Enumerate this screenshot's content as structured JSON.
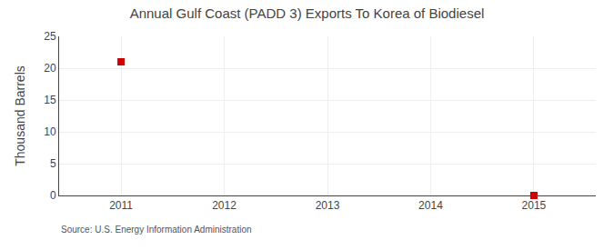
{
  "chart_data": {
    "type": "scatter",
    "title": "Annual Gulf Coast (PADD 3) Exports To Korea of Biodiesel",
    "ylabel": "Thousand Barrels",
    "annotations": [
      "Source: U.S. Energy Information Administration"
    ],
    "x": [
      2011,
      2015
    ],
    "values": [
      21,
      0
    ],
    "color": "#cc0000",
    "marker": "square",
    "xlim": [
      2010.4,
      2015.6
    ],
    "ylim": [
      0,
      25
    ],
    "xticks": [
      2011,
      2012,
      2013,
      2014,
      2015
    ],
    "yticks": [
      0,
      5,
      10,
      15,
      20,
      25
    ],
    "grid": true
  }
}
